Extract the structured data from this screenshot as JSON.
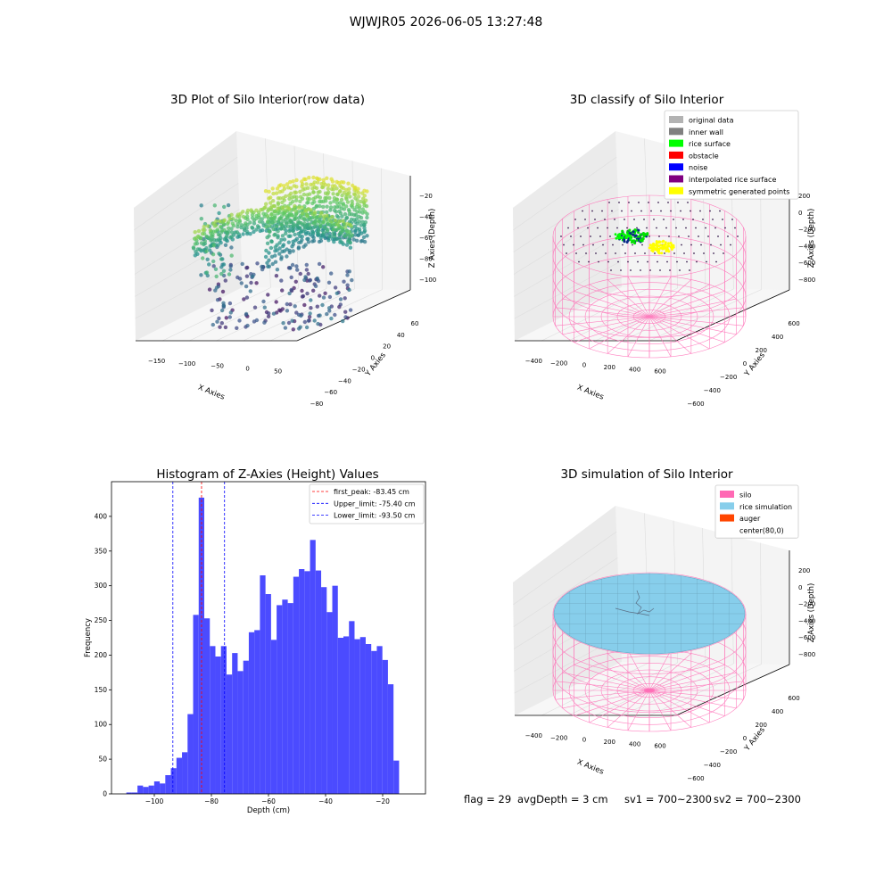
{
  "figure": {
    "suptitle": "WJWJR05 2026-06-05 13:27:48",
    "footer": {
      "flag": "flag = 29",
      "avg_depth": "avgDepth = 3 cm",
      "sv1": "sv1 = 700~2300",
      "sv2": "sv2 = 700~2300"
    }
  },
  "chart_data": [
    {
      "type": "scatter",
      "projection": "3d",
      "title": "3D Plot of Silo Interior(row data)",
      "xlabel": "X Axies",
      "ylabel": "Y Axies",
      "zlabel": "Z Axies (Depth)",
      "x_ticks": [
        "−150",
        "−100",
        "−50",
        "0",
        "50"
      ],
      "y_ticks": [
        "−80",
        "−60",
        "−40",
        "−20",
        "0",
        "20",
        "40",
        "60"
      ],
      "z_ticks": [
        "−20",
        "−40",
        "−60",
        "−80",
        "−100"
      ],
      "xlim": [
        -175,
        75
      ],
      "ylim": [
        -80,
        70
      ],
      "zlim": [
        -120,
        -10
      ],
      "colormap": "viridis"
    },
    {
      "type": "scatter",
      "projection": "3d",
      "title": "3D classify of Silo Interior",
      "xlabel": "X Axies",
      "ylabel": "Y Axies",
      "zlabel": "Z Axies (Depth)",
      "x_ticks": [
        "−400",
        "−200",
        "0",
        "200",
        "400",
        "600"
      ],
      "y_ticks": [
        "−600",
        "−400",
        "−200",
        "0",
        "200",
        "400",
        "600"
      ],
      "z_ticks": [
        "200",
        "0",
        "−200",
        "−400",
        "−600",
        "−800"
      ],
      "legend_position": "top-right",
      "legend": [
        {
          "label": "original data",
          "color": "#b3b3b3"
        },
        {
          "label": "inner wall",
          "color": "#808080"
        },
        {
          "label": "rice surface",
          "color": "#00ff00"
        },
        {
          "label": "obstacle",
          "color": "#ff0000"
        },
        {
          "label": "noise",
          "color": "#0000ff"
        },
        {
          "label": "interpolated rice surface",
          "color": "#800080"
        },
        {
          "label": "symmetric generated points",
          "color": "#ffff00"
        }
      ]
    },
    {
      "type": "bar",
      "title": "Histogram of Z-Axies (Height) Values",
      "xlabel": "Depth (cm)",
      "ylabel": "Frequency",
      "xlim": [
        -115,
        -5
      ],
      "ylim": [
        0,
        450
      ],
      "x_ticks": [
        -100,
        -80,
        -60,
        -40,
        -20
      ],
      "y_ticks": [
        0,
        50,
        100,
        150,
        200,
        250,
        300,
        350,
        400
      ],
      "bar_color": "#4b4bff",
      "bin_start": -109.8,
      "bin_width": 1.95,
      "values": [
        2,
        2,
        12,
        10,
        12,
        18,
        15,
        27,
        37,
        52,
        60,
        115,
        258,
        427,
        253,
        213,
        198,
        213,
        172,
        203,
        177,
        192,
        233,
        236,
        315,
        288,
        222,
        272,
        280,
        275,
        313,
        324,
        321,
        366,
        322,
        298,
        262,
        300,
        225,
        227,
        249,
        223,
        226,
        216,
        206,
        213,
        193,
        158,
        48
      ],
      "lines": [
        {
          "label": "first_peak: -83.45 cm",
          "x": -83.45,
          "color": "#ff0000"
        },
        {
          "label": "Upper_limit: -75.40 cm",
          "x": -75.4,
          "color": "#0000ff"
        },
        {
          "label": "Lower_limit: -93.50 cm",
          "x": -93.5,
          "color": "#0000ff"
        }
      ],
      "legend_position": "top-right"
    },
    {
      "type": "scatter",
      "projection": "3d",
      "title": "3D simulation of Silo Interior",
      "xlabel": "X Axies",
      "ylabel": "Y Axies",
      "zlabel": "Z Axies (Depth)",
      "x_ticks": [
        "−400",
        "−200",
        "0",
        "200",
        "400",
        "600"
      ],
      "y_ticks": [
        "−600",
        "−400",
        "−200",
        "0",
        "200",
        "400",
        "600"
      ],
      "z_ticks": [
        "200",
        "0",
        "−200",
        "−400",
        "−600",
        "−800"
      ],
      "legend_position": "top-right",
      "legend": [
        {
          "label": "silo",
          "color": "#ff69b4"
        },
        {
          "label": "rice simulation",
          "color": "#87ceeb"
        },
        {
          "label": "auger",
          "color": "#ff4500"
        },
        {
          "label": "center(80,0)",
          "color": ""
        }
      ]
    }
  ]
}
